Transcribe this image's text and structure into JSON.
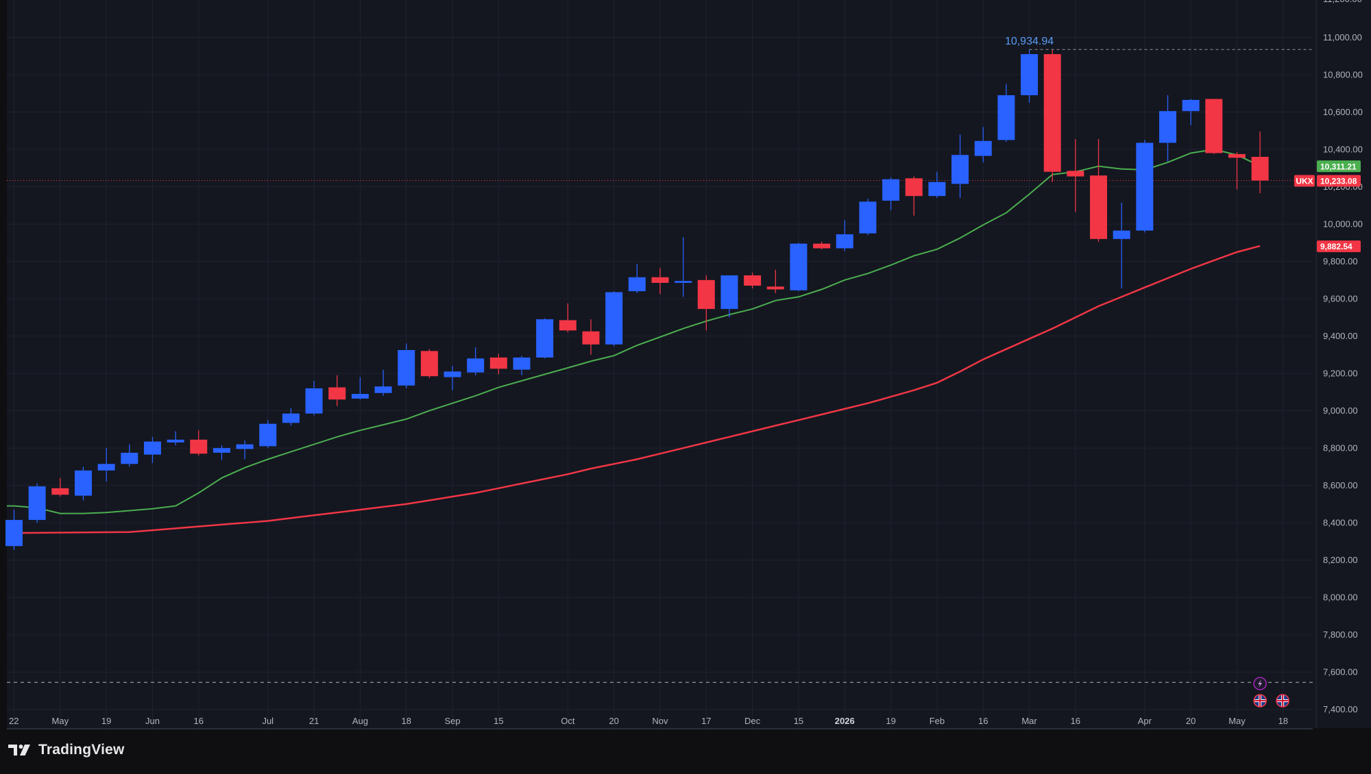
{
  "app": {
    "brand": "TradingView",
    "symbol": "UKX"
  },
  "colors": {
    "background": "#141720",
    "outer": "#0f0f12",
    "grid": "#1f2330",
    "text": "#b2b5be",
    "up": "#2962ff",
    "down": "#f23645",
    "ma_fast": "#4caf50",
    "ma_slow": "#f23645",
    "high_label": "#5b9cf6"
  },
  "chart_data": {
    "type": "candlestick",
    "interval": "weekly",
    "y_axis": {
      "range": [
        7300,
        11200
      ],
      "ticks": [
        "7,400.00",
        "7,600.00",
        "7,800.00",
        "8,000.00",
        "8,200.00",
        "8,400.00",
        "8,600.00",
        "8,800.00",
        "9,000.00",
        "9,200.00",
        "9,400.00",
        "9,600.00",
        "9,800.00",
        "10,000.00",
        "10,200.00",
        "10,400.00",
        "10,600.00",
        "10,800.00",
        "11,000.00"
      ],
      "tick_values": [
        7400,
        7600,
        7800,
        8000,
        8200,
        8400,
        8600,
        8800,
        9000,
        9200,
        9400,
        9600,
        9800,
        10000,
        10200,
        10400,
        10600,
        10800,
        11000
      ]
    },
    "x_axis": {
      "labels": [
        "22",
        "May",
        "19",
        "Jun",
        "16",
        "Jul",
        "21",
        "Aug",
        "18",
        "Sep",
        "15",
        "Oct",
        "20",
        "Nov",
        "17",
        "Dec",
        "15",
        "2026",
        "19",
        "Feb",
        "16",
        "Mar",
        "16",
        "Apr",
        "20",
        "May",
        "18"
      ],
      "label_bar_index": [
        0,
        2,
        4,
        6,
        8,
        11,
        13,
        15,
        17,
        19,
        21,
        24,
        26,
        28,
        30,
        32,
        34,
        36,
        38,
        40,
        42,
        44,
        46,
        49,
        51,
        53,
        55
      ],
      "bold_labels": [
        "2026"
      ]
    },
    "candles": [
      {
        "o": 8275,
        "h": 8470,
        "l": 8255,
        "c": 8415
      },
      {
        "o": 8415,
        "h": 8610,
        "l": 8400,
        "c": 8595
      },
      {
        "o": 8585,
        "h": 8640,
        "l": 8540,
        "c": 8550
      },
      {
        "o": 8545,
        "h": 8700,
        "l": 8520,
        "c": 8680
      },
      {
        "o": 8680,
        "h": 8800,
        "l": 8620,
        "c": 8715
      },
      {
        "o": 8715,
        "h": 8820,
        "l": 8700,
        "c": 8775
      },
      {
        "o": 8765,
        "h": 8860,
        "l": 8720,
        "c": 8835
      },
      {
        "o": 8830,
        "h": 8890,
        "l": 8815,
        "c": 8845
      },
      {
        "o": 8845,
        "h": 8895,
        "l": 8760,
        "c": 8770
      },
      {
        "o": 8775,
        "h": 8815,
        "l": 8735,
        "c": 8800
      },
      {
        "o": 8795,
        "h": 8840,
        "l": 8740,
        "c": 8820
      },
      {
        "o": 8810,
        "h": 8950,
        "l": 8800,
        "c": 8930
      },
      {
        "o": 8935,
        "h": 9015,
        "l": 8920,
        "c": 8985
      },
      {
        "o": 8985,
        "h": 9160,
        "l": 8975,
        "c": 9120
      },
      {
        "o": 9125,
        "h": 9190,
        "l": 9025,
        "c": 9060
      },
      {
        "o": 9065,
        "h": 9180,
        "l": 9060,
        "c": 9090
      },
      {
        "o": 9095,
        "h": 9220,
        "l": 9080,
        "c": 9130
      },
      {
        "o": 9135,
        "h": 9360,
        "l": 9120,
        "c": 9325
      },
      {
        "o": 9320,
        "h": 9330,
        "l": 9175,
        "c": 9185
      },
      {
        "o": 9180,
        "h": 9240,
        "l": 9110,
        "c": 9210
      },
      {
        "o": 9205,
        "h": 9340,
        "l": 9190,
        "c": 9280
      },
      {
        "o": 9285,
        "h": 9305,
        "l": 9195,
        "c": 9225
      },
      {
        "o": 9220,
        "h": 9295,
        "l": 9190,
        "c": 9285
      },
      {
        "o": 9285,
        "h": 9495,
        "l": 9280,
        "c": 9490
      },
      {
        "o": 9485,
        "h": 9575,
        "l": 9420,
        "c": 9430
      },
      {
        "o": 9425,
        "h": 9490,
        "l": 9300,
        "c": 9355
      },
      {
        "o": 9355,
        "h": 9640,
        "l": 9345,
        "c": 9635
      },
      {
        "o": 9640,
        "h": 9785,
        "l": 9630,
        "c": 9715
      },
      {
        "o": 9715,
        "h": 9765,
        "l": 9625,
        "c": 9685
      },
      {
        "o": 9685,
        "h": 9930,
        "l": 9610,
        "c": 9695
      },
      {
        "o": 9700,
        "h": 9725,
        "l": 9430,
        "c": 9545
      },
      {
        "o": 9545,
        "h": 9725,
        "l": 9500,
        "c": 9725
      },
      {
        "o": 9725,
        "h": 9740,
        "l": 9655,
        "c": 9670
      },
      {
        "o": 9665,
        "h": 9755,
        "l": 9630,
        "c": 9650
      },
      {
        "o": 9645,
        "h": 9900,
        "l": 9640,
        "c": 9895
      },
      {
        "o": 9895,
        "h": 9905,
        "l": 9865,
        "c": 9870
      },
      {
        "o": 9870,
        "h": 10020,
        "l": 9855,
        "c": 9945
      },
      {
        "o": 9950,
        "h": 10135,
        "l": 9940,
        "c": 10120
      },
      {
        "o": 10125,
        "h": 10250,
        "l": 10075,
        "c": 10240
      },
      {
        "o": 10245,
        "h": 10255,
        "l": 10045,
        "c": 10150
      },
      {
        "o": 10150,
        "h": 10280,
        "l": 10140,
        "c": 10225
      },
      {
        "o": 10215,
        "h": 10480,
        "l": 10140,
        "c": 10370
      },
      {
        "o": 10365,
        "h": 10520,
        "l": 10330,
        "c": 10445
      },
      {
        "o": 10450,
        "h": 10750,
        "l": 10440,
        "c": 10690
      },
      {
        "o": 10690,
        "h": 10935,
        "l": 10650,
        "c": 10910
      },
      {
        "o": 10910,
        "h": 10935,
        "l": 10225,
        "c": 10280
      },
      {
        "o": 10285,
        "h": 10455,
        "l": 10065,
        "c": 10255
      },
      {
        "o": 10260,
        "h": 10455,
        "l": 9905,
        "c": 9920
      },
      {
        "o": 9920,
        "h": 10115,
        "l": 9655,
        "c": 9965
      },
      {
        "o": 9965,
        "h": 10450,
        "l": 9955,
        "c": 10435
      },
      {
        "o": 10435,
        "h": 10690,
        "l": 10335,
        "c": 10605
      },
      {
        "o": 10605,
        "h": 10670,
        "l": 10530,
        "c": 10665
      },
      {
        "o": 10670,
        "h": 10670,
        "l": 10375,
        "c": 10380
      },
      {
        "o": 10375,
        "h": 10385,
        "l": 10185,
        "c": 10355
      },
      {
        "o": 10360,
        "h": 10495,
        "l": 10165,
        "c": 10233
      }
    ],
    "ma_fast": [
      8490,
      8480,
      8450,
      8450,
      8455,
      8465,
      8475,
      8490,
      8560,
      8640,
      8695,
      8740,
      8780,
      8820,
      8860,
      8895,
      8925,
      8955,
      9000,
      9040,
      9080,
      9125,
      9160,
      9195,
      9230,
      9265,
      9295,
      9350,
      9395,
      9440,
      9480,
      9515,
      9545,
      9590,
      9610,
      9650,
      9700,
      9735,
      9780,
      9830,
      9865,
      9925,
      9995,
      10060,
      10160,
      10265,
      10280,
      10310,
      10295,
      10290,
      10330,
      10380,
      10400,
      10370,
      10311
    ],
    "ma_slow": [
      8350,
      8360,
      8370,
      8380,
      8390,
      8400,
      8410,
      8425,
      8440,
      8455,
      8470,
      8485,
      8500,
      8520,
      8540,
      8560,
      8585,
      8610,
      8635,
      8660,
      8690,
      8715,
      8740,
      8770,
      8800,
      8830,
      8860,
      8890,
      8920,
      8950,
      8980,
      9010,
      9040,
      9075,
      9110,
      9150,
      9210,
      9275,
      9330,
      9385,
      9440,
      9500,
      9560,
      9610,
      9660,
      9710,
      9760,
      9805,
      9850,
      9882.54
    ],
    "ma_slow_start_index": 5,
    "price_labels": [
      {
        "text": "10,311.21",
        "value": 10311.21,
        "color": "#4caf50",
        "kind": "ma-fast-label"
      },
      {
        "text": "10,233.08",
        "value": 10233.08,
        "color": "#f23645",
        "kind": "last-price-label",
        "tag": "UKX"
      },
      {
        "text": "9,882.54",
        "value": 9882.54,
        "color": "#f23645",
        "kind": "ma-slow-label"
      }
    ],
    "high_marker": {
      "text": "10,934.94",
      "value": 10934.94,
      "bar_index": 44
    },
    "dashed_low_line_value": 7545,
    "event_markers": [
      {
        "icon": "lightning-icon",
        "bar_index": 54
      },
      {
        "icon": "uk-flag-icon",
        "bar_index": 54
      },
      {
        "icon": "uk-flag-icon",
        "bar_index": 55
      }
    ]
  }
}
